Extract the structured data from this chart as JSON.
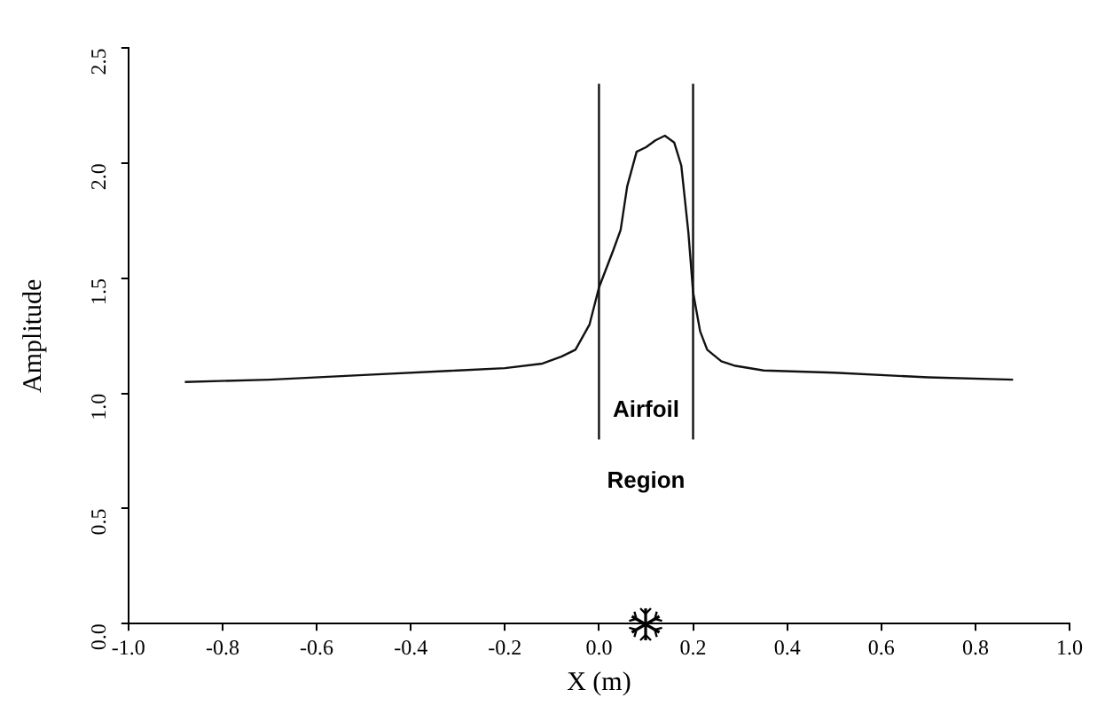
{
  "chart_data": {
    "type": "line",
    "xlabel": "X (m)",
    "ylabel": "Amplitude",
    "x": [
      -0.88,
      -0.7,
      -0.5,
      -0.3,
      -0.2,
      -0.12,
      -0.08,
      -0.05,
      -0.02,
      0.0,
      0.03,
      0.046,
      0.06,
      0.08,
      0.1,
      0.12,
      0.14,
      0.16,
      0.175,
      0.19,
      0.2,
      0.215,
      0.23,
      0.26,
      0.29,
      0.35,
      0.5,
      0.7,
      0.88
    ],
    "series": [
      {
        "color": "#111111",
        "values": [
          1.05,
          1.06,
          1.08,
          1.1,
          1.11,
          1.13,
          1.16,
          1.19,
          1.3,
          1.46,
          1.62,
          1.71,
          1.9,
          2.05,
          2.07,
          2.1,
          2.12,
          2.09,
          1.99,
          1.7,
          1.44,
          1.27,
          1.19,
          1.14,
          1.12,
          1.1,
          1.09,
          1.07,
          1.06
        ]
      }
    ],
    "xlim": [
      -1.0,
      1.0
    ],
    "ylim": [
      0.0,
      2.5
    ],
    "xticks": [
      {
        "value": -1.0,
        "label": "-1.0"
      },
      {
        "value": -0.8,
        "label": "-0.8"
      },
      {
        "value": -0.6,
        "label": "-0.6"
      },
      {
        "value": -0.4,
        "label": "-0.4"
      },
      {
        "value": -0.2,
        "label": "-0.2"
      },
      {
        "value": 0.0,
        "label": "0.0"
      },
      {
        "value": 0.2,
        "label": "0.2"
      },
      {
        "value": 0.4,
        "label": "0.4"
      },
      {
        "value": 0.6,
        "label": "0.6"
      },
      {
        "value": 0.8,
        "label": "0.8"
      },
      {
        "value": 1.0,
        "label": "1.0"
      }
    ],
    "yticks": [
      {
        "value": 0.0,
        "label": "0.0"
      },
      {
        "value": 0.5,
        "label": "0.5"
      },
      {
        "value": 1.0,
        "label": "1.0"
      },
      {
        "value": 1.5,
        "label": "1.5"
      },
      {
        "value": 2.0,
        "label": "2.0"
      },
      {
        "value": 2.5,
        "label": "2.5"
      }
    ],
    "ref_lines": [
      {
        "axis": "x",
        "value": 0.0,
        "color": "#111111"
      },
      {
        "axis": "x",
        "value": 0.2,
        "color": "#111111"
      }
    ],
    "annotations": [
      "Airfoil",
      "Region"
    ],
    "grid": false,
    "legend": false,
    "marker": "none",
    "line_style": "solid"
  }
}
